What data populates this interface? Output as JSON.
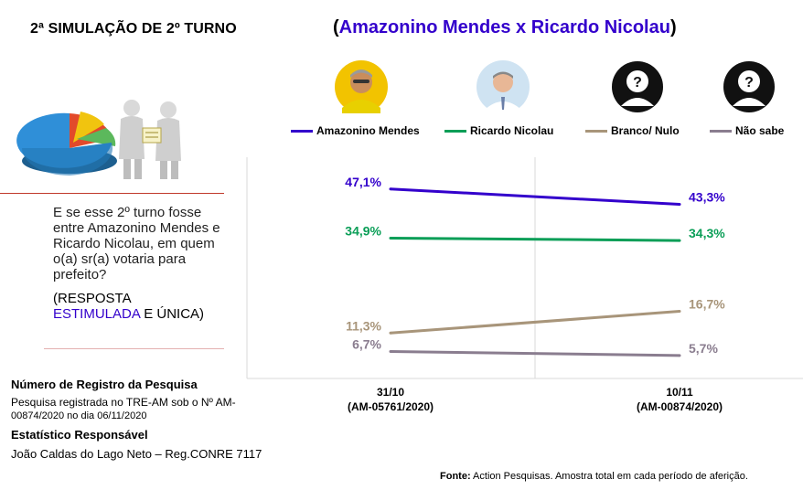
{
  "header": {
    "title": "2ª SIMULAÇÃO DE 2º TURNO",
    "versus_open": "(",
    "versus_names": "Amazonino Mendes x Ricardo Nicolau",
    "versus_close": ")"
  },
  "question": {
    "text": "E se esse 2º turno fosse entre Amazonino Mendes e Ricardo Nicolau, em quem o(a) sr(a) votaria para prefeito?",
    "answer_open": "(",
    "answer_bold1": "RESPOSTA",
    "answer_stimulated": "ESTIMULADA",
    "answer_bold2": " E ÚNICA",
    "answer_close": ")"
  },
  "registration": {
    "title": "Número de Registro da Pesquisa",
    "text1": "Pesquisa registrada no TRE-AM sob o Nº AM-",
    "text2": "00874/2020 no dia 06/11/2020"
  },
  "statistician": {
    "title": "Estatístico Responsável",
    "name": "João Caldas do Lago Neto – Reg.CONRE 7117"
  },
  "source": {
    "label": "Fonte:",
    "text": " Action Pesquisas. Amostra total em cada período de aferição."
  },
  "avatars": [
    {
      "icon": "candidate-photo-icon"
    },
    {
      "icon": "candidate-photo-icon"
    },
    {
      "icon": "unknown-person-icon"
    },
    {
      "icon": "unknown-person-icon"
    }
  ],
  "chart_data": {
    "type": "line",
    "categories": [
      "31/10\n(AM-05761/2020)",
      "10/11\n(AM-00874/2020)"
    ],
    "category_lines": [
      [
        "31/10",
        "(AM-05761/2020)"
      ],
      [
        "10/11",
        "(AM-00874/2020)"
      ]
    ],
    "series": [
      {
        "name": "Amazonino Mendes",
        "values": [
          47.1,
          43.3
        ],
        "labels": [
          "47,1%",
          "43,3%"
        ],
        "color": "#3300cc"
      },
      {
        "name": "Ricardo Nicolau",
        "values": [
          34.9,
          34.3
        ],
        "labels": [
          "34,9%",
          "34,3%"
        ],
        "color": "#0a9e57"
      },
      {
        "name": "Branco/ Nulo",
        "values": [
          11.3,
          16.7
        ],
        "labels": [
          "11,3%",
          "16,7%"
        ],
        "color": "#a8957a"
      },
      {
        "name": "Não sabe",
        "values": [
          6.7,
          5.7
        ],
        "labels": [
          "6,7%",
          "5,7%"
        ],
        "color": "#8a7d8f"
      }
    ],
    "ylim": [
      0,
      55
    ],
    "legend": "top",
    "grid": false
  }
}
